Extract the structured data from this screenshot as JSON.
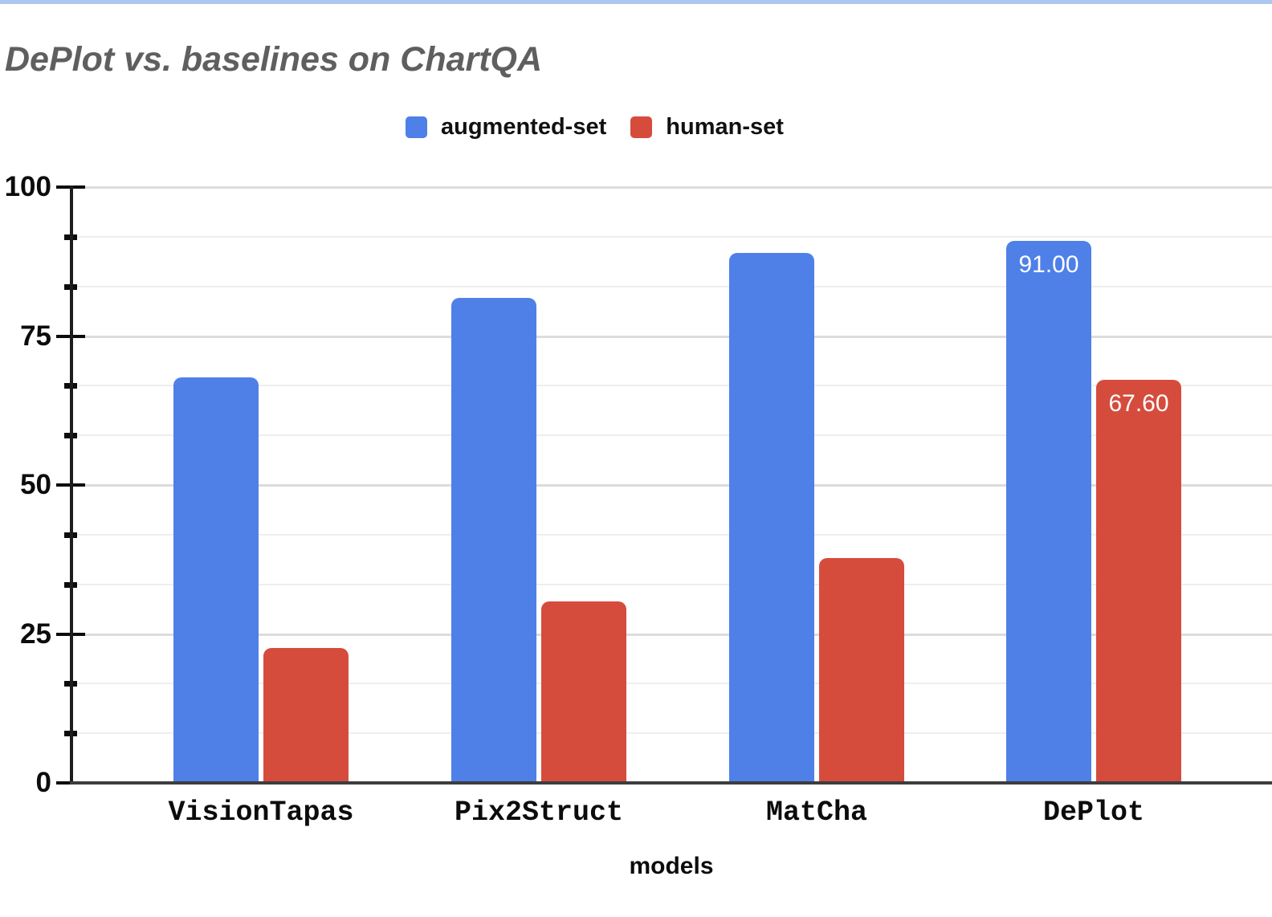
{
  "page": {
    "top_border_color": "#adc8f0",
    "background_color": "#ffffff"
  },
  "title": {
    "text": "DePlot vs. baselines on ChartQA",
    "color": "#5f5f5f"
  },
  "chart_data": {
    "type": "bar",
    "title": "DePlot vs. baselines on ChartQA",
    "categories": [
      "VisionTapas",
      "Pix2Struct",
      "MatCha",
      "DePlot"
    ],
    "series": [
      {
        "name": "augmented-set",
        "color": "#4e80e8",
        "values": [
          68.0,
          81.4,
          89.0,
          91.0
        ]
      },
      {
        "name": "human-set",
        "color": "#d54c3d",
        "values": [
          22.6,
          30.5,
          37.8,
          67.6
        ]
      }
    ],
    "data_labels": [
      {
        "series_index": 0,
        "category_index": 3,
        "text": "91.00"
      },
      {
        "series_index": 1,
        "category_index": 3,
        "text": "67.60"
      }
    ],
    "xlabel": "models",
    "ylabel": "",
    "ylim": [
      0,
      100
    ],
    "yticks": [
      0,
      25,
      50,
      75,
      100
    ],
    "minor_divisions_per_major": 3,
    "grid": true,
    "legend_position": "top",
    "axis_colors": {
      "gridline_major": "#dcdcdc",
      "gridline_minor": "#eeeeee",
      "axis": "#1d1d1d",
      "baseline": "#3d3d3d",
      "tick": "#0c0c0c"
    }
  }
}
